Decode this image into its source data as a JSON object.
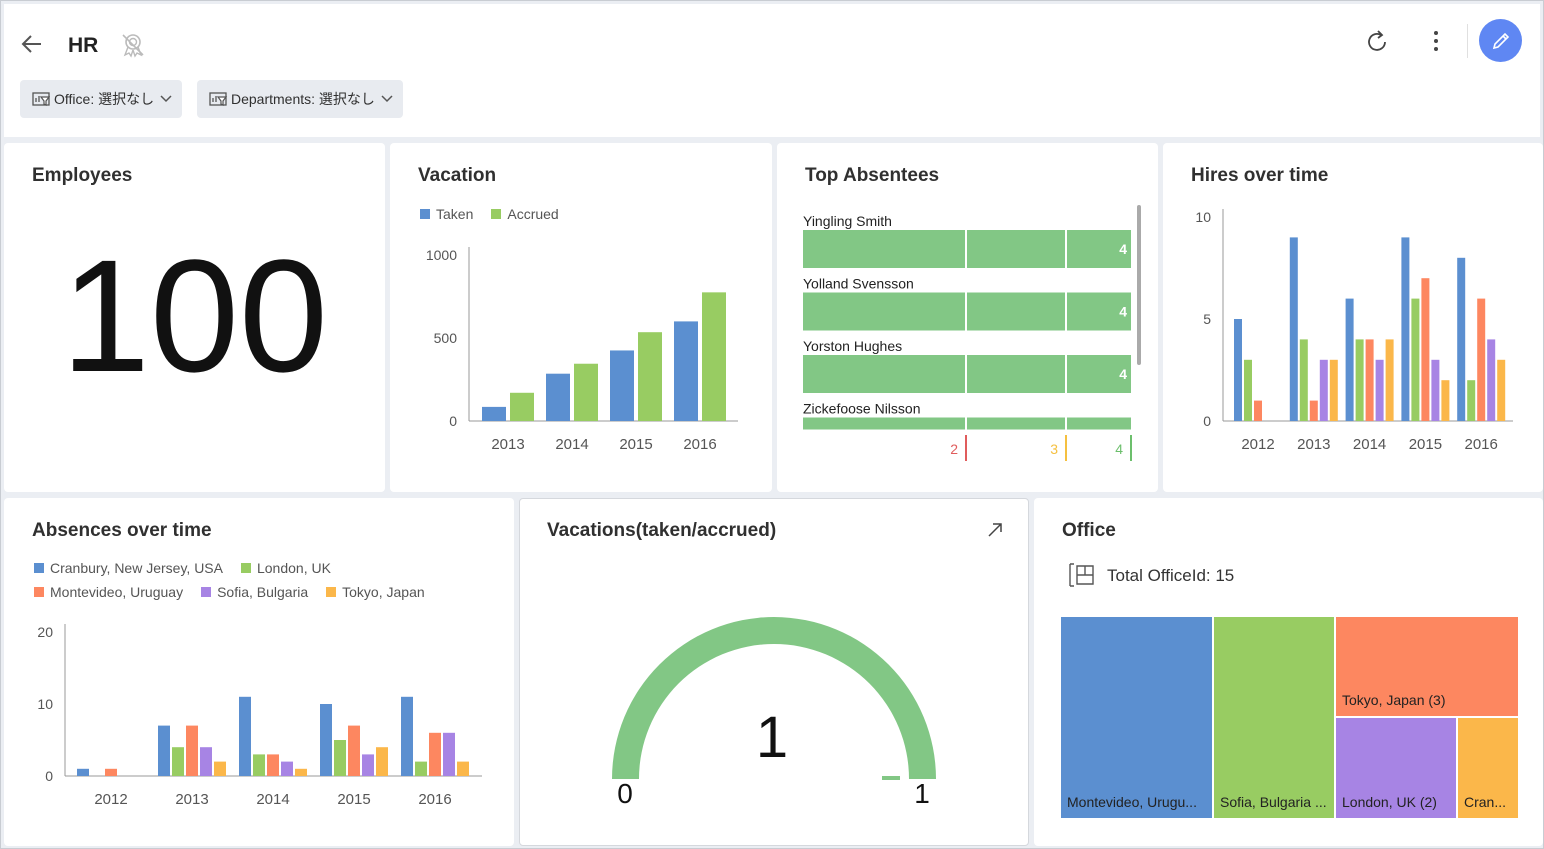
{
  "header": {
    "title": "HR",
    "filters": [
      {
        "label": "Office: 選択なし"
      },
      {
        "label": "Departments: 選択なし"
      }
    ]
  },
  "kpi": {
    "title": "Employees",
    "value": "100"
  },
  "vacation": {
    "title": "Vacation",
    "legend": [
      "Taken",
      "Accrued"
    ],
    "colors": [
      "#5b8fd0",
      "#98cc62"
    ],
    "chart_data": {
      "type": "bar",
      "categories": [
        "2013",
        "2014",
        "2015",
        "2016"
      ],
      "series": [
        {
          "name": "Taken",
          "values": [
            85,
            285,
            425,
            600
          ]
        },
        {
          "name": "Accrued",
          "values": [
            170,
            345,
            535,
            775
          ]
        }
      ],
      "yticks": [
        "0",
        "500",
        "1000"
      ],
      "ylim": [
        0,
        1000
      ]
    }
  },
  "absentees": {
    "title": "Top Absentees",
    "rows": [
      {
        "name": "Yingling Smith",
        "value": "4"
      },
      {
        "name": "Yolland Svensson",
        "value": "4"
      },
      {
        "name": "Yorston Hughes",
        "value": "4"
      },
      {
        "name": "Zickefoose Nilsson",
        "value": "4"
      }
    ],
    "scale": [
      {
        "label": "2",
        "color": "#e05c5c"
      },
      {
        "label": "3",
        "color": "#f5c040"
      },
      {
        "label": "4",
        "color": "#6cbf6c"
      }
    ],
    "bar_color": "#82c785",
    "chart_data": {
      "type": "bar",
      "categories": [
        "Yingling Smith",
        "Yolland Svensson",
        "Yorston Hughes",
        "Zickefoose Nilsson"
      ],
      "values": [
        4,
        4,
        4,
        4
      ]
    }
  },
  "hires": {
    "title": "Hires over time",
    "colors": [
      "#5b8fd0",
      "#98cc62",
      "#fd8760",
      "#a784e4",
      "#fbb74a"
    ],
    "chart_data": {
      "type": "bar",
      "categories": [
        "2012",
        "2013",
        "2014",
        "2015",
        "2016"
      ],
      "series": [
        {
          "values": [
            5,
            9,
            6,
            9,
            8
          ]
        },
        {
          "values": [
            3,
            4,
            4,
            6,
            2
          ]
        },
        {
          "values": [
            1,
            1,
            4,
            7,
            6
          ]
        },
        {
          "values": [
            0,
            3,
            3,
            3,
            4
          ]
        },
        {
          "values": [
            0,
            3,
            4,
            2,
            3
          ]
        }
      ],
      "yticks": [
        "0",
        "5",
        "10"
      ],
      "ylim": [
        0,
        10
      ]
    }
  },
  "absences": {
    "title": "Absences over time",
    "legend": [
      "Cranbury, New Jersey, USA",
      "London, UK",
      "Montevideo, Uruguay",
      "Sofia, Bulgaria",
      "Tokyo, Japan"
    ],
    "colors": [
      "#5b8fd0",
      "#98cc62",
      "#fd8760",
      "#a784e4",
      "#fbb74a"
    ],
    "chart_data": {
      "type": "bar",
      "categories": [
        "2012",
        "2013",
        "2014",
        "2015",
        "2016"
      ],
      "series": [
        {
          "name": "Cranbury, New Jersey, USA",
          "values": [
            1,
            7,
            11,
            10,
            11
          ]
        },
        {
          "name": "London, UK",
          "values": [
            0,
            4,
            3,
            5,
            2
          ]
        },
        {
          "name": "Montevideo, Uruguay",
          "values": [
            1,
            7,
            3,
            7,
            6
          ]
        },
        {
          "name": "Sofia, Bulgaria",
          "values": [
            0,
            4,
            2,
            3,
            6
          ]
        },
        {
          "name": "Tokyo, Japan",
          "values": [
            0,
            2,
            1,
            4,
            2
          ]
        }
      ],
      "yticks": [
        "0",
        "10",
        "20"
      ],
      "ylim": [
        0,
        20
      ]
    }
  },
  "gauge": {
    "title": "Vacations(taken/accrued)",
    "value": "1",
    "min": "0",
    "max": "1",
    "color": "#82c785"
  },
  "office": {
    "title": "Office",
    "total": "Total OfficeId: 15",
    "cells": [
      {
        "label": "Montevideo, Urugu...",
        "color": "#5b8fd0"
      },
      {
        "label": "Sofia, Bulgaria ...",
        "color": "#98cc62"
      },
      {
        "label": "Tokyo, Japan (3)",
        "color": "#fd8760"
      },
      {
        "label": "London, UK (2)",
        "color": "#a784e4"
      },
      {
        "label": "Cran...",
        "color": "#fbb74a"
      }
    ]
  }
}
